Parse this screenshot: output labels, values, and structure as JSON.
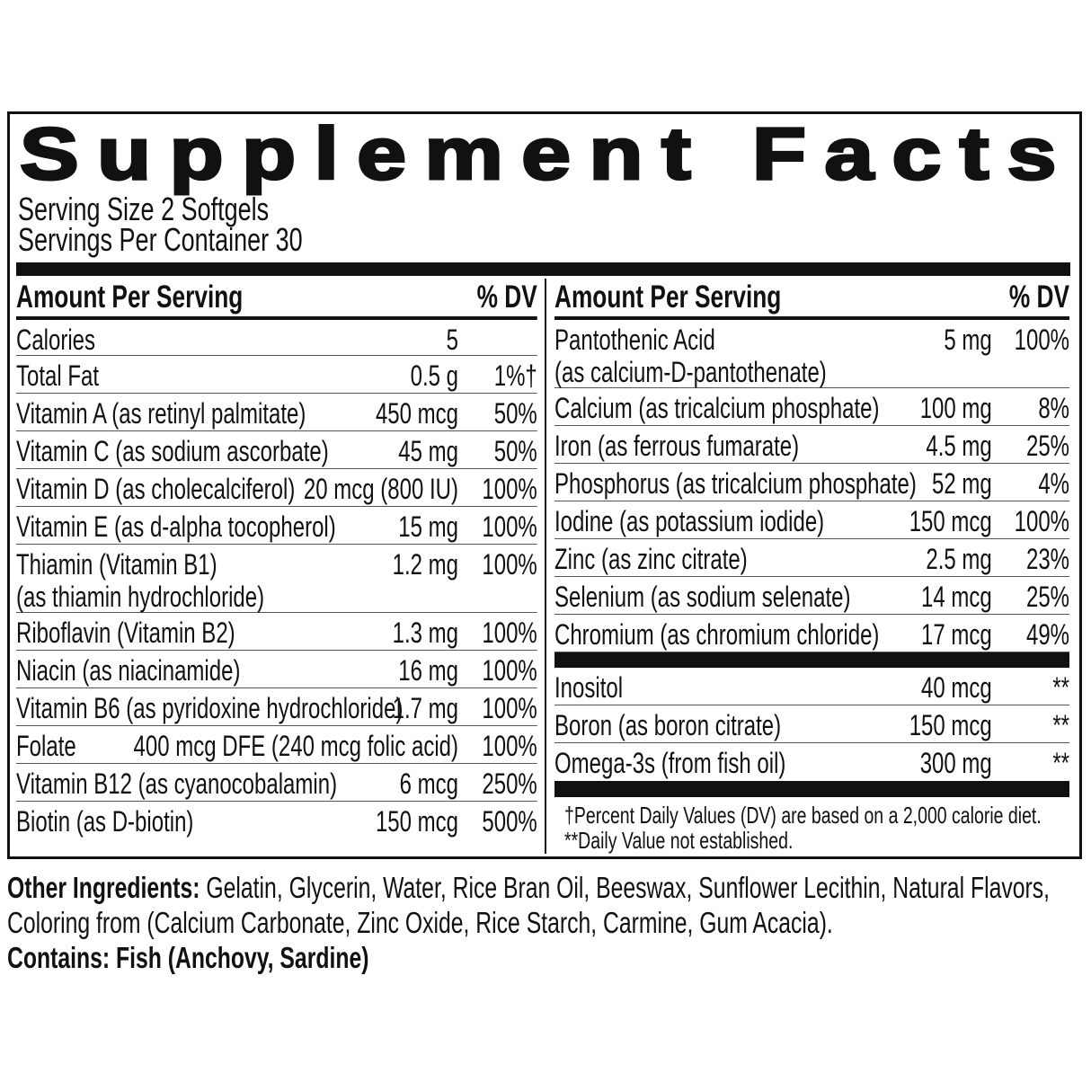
{
  "title": "Supplement Facts",
  "serving_size": "Serving Size 2 Softgels",
  "servings_per_container": "Servings Per Container 30",
  "header": {
    "amount": "Amount Per Serving",
    "dv": "% DV"
  },
  "left_rows": [
    {
      "name": "Calories",
      "amount": "5",
      "dv": ""
    },
    {
      "name": "Total Fat",
      "amount": "0.5 g",
      "dv": "1%†"
    },
    {
      "name": "Vitamin A (as retinyl palmitate)",
      "amount": "450 mcg",
      "dv": "50%"
    },
    {
      "name": "Vitamin C (as sodium ascorbate)",
      "amount": "45 mg",
      "dv": "50%"
    },
    {
      "name": "Vitamin D (as cholecalciferol)",
      "amount": "20 mcg (800 IU)",
      "dv": "100%"
    },
    {
      "name": "Vitamin E (as d-alpha tocopherol)",
      "amount": "15 mg",
      "dv": "100%"
    },
    {
      "name": "Thiamin (Vitamin B1)",
      "sub": "(as thiamin hydrochloride)",
      "amount": "1.2 mg",
      "dv": "100%"
    },
    {
      "name": "Riboflavin (Vitamin B2)",
      "amount": "1.3 mg",
      "dv": "100%"
    },
    {
      "name": "Niacin (as niacinamide)",
      "amount": "16 mg",
      "dv": "100%"
    },
    {
      "name": "Vitamin B6 (as pyridoxine hydrochloride)",
      "amount": "1.7 mg",
      "dv": "100%"
    },
    {
      "name": "Folate",
      "amount": "400 mcg DFE  (240 mcg folic acid)",
      "dv": "100%"
    },
    {
      "name": "Vitamin B12 (as cyanocobalamin)",
      "amount": "6 mcg",
      "dv": "250%"
    },
    {
      "name": "Biotin (as D-biotin)",
      "amount": "150 mcg",
      "dv": "500%"
    }
  ],
  "right_rows": [
    {
      "name": "Pantothenic Acid",
      "sub": "(as calcium-D-pantothenate)",
      "amount": "5 mg",
      "dv": "100%"
    },
    {
      "name": "Calcium (as tricalcium phosphate)",
      "amount": "100 mg",
      "dv": "8%"
    },
    {
      "name": "Iron (as ferrous fumarate)",
      "amount": "4.5 mg",
      "dv": "25%"
    },
    {
      "name": "Phosphorus (as tricalcium phosphate)",
      "amount": "52 mg",
      "dv": "4%"
    },
    {
      "name": "Iodine (as potassium iodide)",
      "amount": "150 mcg",
      "dv": "100%"
    },
    {
      "name": "Zinc (as zinc citrate)",
      "amount": "2.5 mg",
      "dv": "23%"
    },
    {
      "name": "Selenium (as sodium selenate)",
      "amount": "14 mcg",
      "dv": "25%"
    },
    {
      "name": "Chromium (as chromium chloride)",
      "amount": "17 mcg",
      "dv": "49%"
    }
  ],
  "right_rows_2": [
    {
      "name": "Inositol",
      "amount": "40 mcg",
      "dv": "**"
    },
    {
      "name": "Boron (as boron citrate)",
      "amount": "150 mcg",
      "dv": "**"
    },
    {
      "name": "Omega-3s (from fish oil)",
      "amount": "300 mg",
      "dv": "**"
    }
  ],
  "footnotes": {
    "dv": "†Percent Daily Values (DV) are based on a 2,000 calorie diet.",
    "not_established": "**Daily Value not established."
  },
  "other_ingredients": {
    "label": "Other Ingredients:",
    "text": " Gelatin, Glycerin, Water, Rice Bran Oil, Beeswax, Sunflower Lecithin, Natural Flavors, Coloring from (Calcium Carbonate, Zinc Oxide, Rice Starch, Carmine, Gum Acacia)."
  },
  "contains": "Contains: Fish (Anchovy, Sardine)"
}
